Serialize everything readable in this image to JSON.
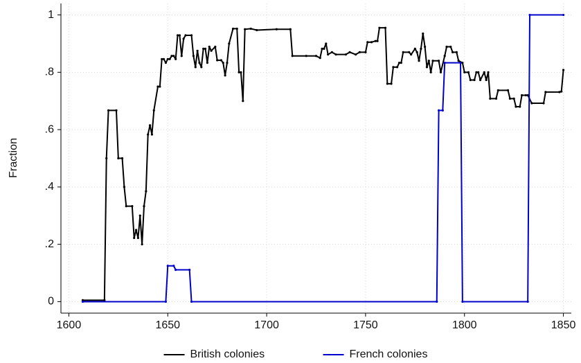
{
  "chart_data": {
    "type": "line",
    "ylabel": "Fraction",
    "xlim": [
      1596,
      1854
    ],
    "ylim": [
      -0.04,
      1.04
    ],
    "xticks": [
      1600,
      1650,
      1700,
      1750,
      1800,
      1850
    ],
    "yticks": [
      0,
      {
        "value": 0.2,
        "label": ".2"
      },
      {
        "value": 0.4,
        "label": ".4"
      },
      {
        "value": 0.6,
        "label": ".6"
      },
      {
        "value": 0.8,
        "label": ".8"
      },
      1
    ],
    "grid": true,
    "legend": "bottom",
    "series": [
      {
        "name": "British colonies",
        "color": "#000000",
        "x": [
          1607,
          1618,
          1619,
          1620,
          1624,
          1625,
          1627,
          1628,
          1629,
          1632,
          1633,
          1634,
          1635,
          1636,
          1637,
          1638,
          1639,
          1640,
          1641,
          1642,
          1643,
          1645,
          1646,
          1647,
          1648,
          1649,
          1650,
          1651,
          1652,
          1653,
          1654,
          1655,
          1656,
          1657,
          1658,
          1659,
          1662,
          1663,
          1664,
          1665,
          1666,
          1667,
          1668,
          1669,
          1670,
          1671,
          1672,
          1674,
          1675,
          1677,
          1678,
          1679,
          1680,
          1681,
          1683,
          1685,
          1686,
          1687,
          1688,
          1689,
          1692,
          1695,
          1705,
          1712,
          1713,
          1720,
          1725,
          1727,
          1728,
          1729,
          1730,
          1731,
          1733,
          1735,
          1740,
          1742,
          1745,
          1747,
          1750,
          1751,
          1753,
          1755,
          1756,
          1757,
          1760,
          1761,
          1763,
          1764,
          1766,
          1767,
          1768,
          1769,
          1772,
          1773,
          1775,
          1776,
          1777,
          1778,
          1779,
          1780,
          1781,
          1782,
          1783,
          1784,
          1787,
          1788,
          1790,
          1791,
          1793,
          1794,
          1796,
          1797,
          1799,
          1800,
          1802,
          1803,
          1805,
          1806,
          1807,
          1808,
          1810,
          1811,
          1812,
          1813,
          1816,
          1817,
          1822,
          1823,
          1825,
          1826,
          1828,
          1829,
          1831,
          1832,
          1834,
          1840,
          1841,
          1848,
          1849,
          1850
        ],
        "values": [
          0.005,
          0.005,
          0.5,
          0.667,
          0.667,
          0.5,
          0.5,
          0.4,
          0.333,
          0.333,
          0.222,
          0.25,
          0.222,
          0.3,
          0.2,
          0.333,
          0.385,
          0.583,
          0.615,
          0.583,
          0.667,
          0.75,
          0.75,
          0.846,
          0.846,
          0.833,
          0.846,
          0.846,
          0.857,
          0.857,
          0.846,
          0.929,
          0.929,
          0.857,
          0.917,
          0.929,
          0.929,
          0.857,
          0.818,
          0.875,
          0.833,
          0.818,
          0.882,
          0.882,
          0.833,
          0.889,
          0.875,
          0.889,
          0.842,
          0.842,
          0.833,
          0.789,
          0.833,
          0.9,
          0.952,
          0.952,
          0.8,
          0.8,
          0.7,
          0.95,
          0.952,
          0.947,
          0.95,
          0.95,
          0.857,
          0.857,
          0.857,
          0.85,
          0.882,
          0.882,
          0.9,
          0.862,
          0.87,
          0.862,
          0.862,
          0.87,
          0.862,
          0.87,
          0.87,
          0.905,
          0.905,
          0.909,
          0.909,
          0.955,
          0.955,
          0.76,
          0.76,
          0.818,
          0.818,
          0.833,
          0.833,
          0.87,
          0.87,
          0.862,
          0.882,
          0.87,
          0.84,
          0.882,
          0.935,
          0.889,
          0.818,
          0.84,
          0.8,
          0.84,
          0.84,
          0.8,
          0.857,
          0.889,
          0.889,
          0.87,
          0.87,
          0.84,
          0.833,
          0.8,
          0.8,
          0.773,
          0.773,
          0.8,
          0.8,
          0.773,
          0.8,
          0.773,
          0.8,
          0.708,
          0.708,
          0.737,
          0.737,
          0.708,
          0.708,
          0.68,
          0.68,
          0.72,
          0.72,
          0.72,
          0.692,
          0.692,
          0.731,
          0.731,
          0.733,
          0.808
        ]
      },
      {
        "name": "French colonies",
        "color": "#0000cc",
        "x": [
          1607,
          1649,
          1650,
          1653,
          1654,
          1661,
          1662,
          1786,
          1787,
          1789,
          1790,
          1798,
          1799,
          1832,
          1833,
          1850
        ],
        "values": [
          0,
          0,
          0.125,
          0.125,
          0.111,
          0.111,
          0,
          0,
          0.667,
          0.667,
          0.833,
          0.833,
          0,
          0,
          1,
          1
        ]
      }
    ]
  }
}
